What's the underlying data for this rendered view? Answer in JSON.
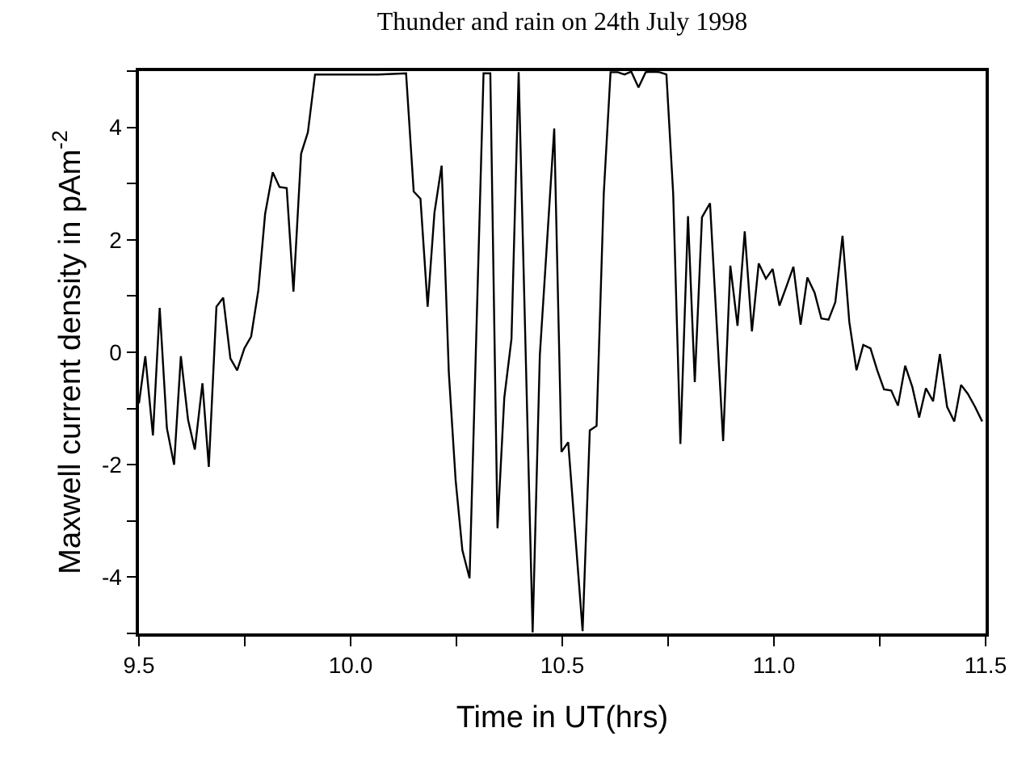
{
  "chart_data": {
    "type": "line",
    "title": "Thunder and rain on 24th July 1998",
    "xlabel": "Time in UT(hrs)",
    "ylabel": "Maxwell current density in pAm$^{-2}$",
    "xlim": [
      9.5,
      11.5
    ],
    "ylim": [
      -5,
      5
    ],
    "xticks": [
      {
        "value": 9.5,
        "label": "9.5"
      },
      {
        "value": 9.75,
        "label": null
      },
      {
        "value": 10,
        "label": "10.0"
      },
      {
        "value": 10.25,
        "label": null
      },
      {
        "value": 10.5,
        "label": "10.5"
      },
      {
        "value": 10.75,
        "label": null
      },
      {
        "value": 11,
        "label": "11.0"
      },
      {
        "value": 11.25,
        "label": null
      },
      {
        "value": 11.5,
        "label": "11.5"
      }
    ],
    "yticks": [
      {
        "value": -5,
        "label": null
      },
      -4,
      {
        "value": -3,
        "label": null
      },
      -2,
      {
        "value": -1,
        "label": null
      },
      0,
      {
        "value": 1,
        "label": null
      },
      2,
      {
        "value": 3,
        "label": null
      },
      4,
      {
        "value": 5,
        "label": null
      }
    ],
    "marker": "none",
    "line_style": "solid",
    "series": [
      {
        "color": "#000000",
        "x": [
          9.5,
          9.515,
          9.533,
          9.549,
          9.566,
          9.583,
          9.599,
          9.616,
          9.632,
          9.65,
          9.665,
          9.683,
          9.699,
          9.716,
          9.732,
          9.749,
          9.765,
          9.782,
          9.798,
          9.816,
          9.832,
          9.849,
          9.865,
          9.883,
          9.899,
          9.916,
          10.065,
          10.131,
          10.149,
          10.165,
          10.182,
          10.198,
          10.215,
          10.232,
          10.248,
          10.264,
          10.281,
          10.314,
          10.33,
          10.347,
          10.363,
          10.38,
          10.397,
          10.43,
          10.447,
          10.464,
          10.481,
          10.498,
          10.514,
          10.532,
          10.548,
          10.565,
          10.581,
          10.598,
          10.614,
          10.631,
          10.647,
          10.663,
          10.68,
          10.697,
          10.713,
          10.73,
          10.746,
          10.762,
          10.779,
          10.797,
          10.813,
          10.83,
          10.849,
          10.88,
          10.897,
          10.914,
          10.931,
          10.948,
          10.964,
          10.981,
          10.997,
          11.013,
          11.03,
          11.046,
          11.063,
          11.079,
          11.096,
          11.112,
          11.129,
          11.145,
          11.162,
          11.178,
          11.195,
          11.211,
          11.228,
          11.244,
          11.26,
          11.277,
          11.293,
          11.31,
          11.327,
          11.343,
          11.359,
          11.376,
          11.392,
          11.409,
          11.426,
          11.442,
          11.458,
          11.475,
          11.492
        ],
        "values": [
          -0.91,
          -0.07,
          -1.48,
          0.79,
          -1.35,
          -2.0,
          -0.07,
          -1.2,
          -1.73,
          -0.55,
          -2.04,
          0.81,
          0.97,
          -0.11,
          -0.32,
          0.07,
          0.28,
          1.1,
          2.46,
          3.2,
          2.94,
          2.92,
          1.08,
          3.53,
          3.91,
          4.94,
          4.94,
          4.96,
          2.86,
          2.73,
          0.81,
          2.48,
          3.32,
          -0.36,
          -2.27,
          -3.52,
          -4.02,
          4.96,
          4.96,
          -3.13,
          -0.81,
          0.24,
          4.98,
          -4.98,
          -0.05,
          1.96,
          3.98,
          -1.77,
          -1.6,
          -3.37,
          -4.96,
          -1.39,
          -1.31,
          2.82,
          4.98,
          4.98,
          4.94,
          4.99,
          4.71,
          4.98,
          4.99,
          4.98,
          4.94,
          2.82,
          -1.63,
          2.42,
          -0.53,
          2.4,
          2.65,
          -1.58,
          1.54,
          0.47,
          2.15,
          0.37,
          1.58,
          1.31,
          1.48,
          0.83,
          1.18,
          1.52,
          0.49,
          1.33,
          1.06,
          0.6,
          0.58,
          0.89,
          2.07,
          0.54,
          -0.32,
          0.13,
          0.07,
          -0.32,
          -0.66,
          -0.68,
          -0.95,
          -0.24,
          -0.62,
          -1.16,
          -0.64,
          -0.87,
          -0.03,
          -0.97,
          -1.23,
          -0.58,
          -0.74,
          -0.97,
          -1.23
        ]
      }
    ]
  }
}
